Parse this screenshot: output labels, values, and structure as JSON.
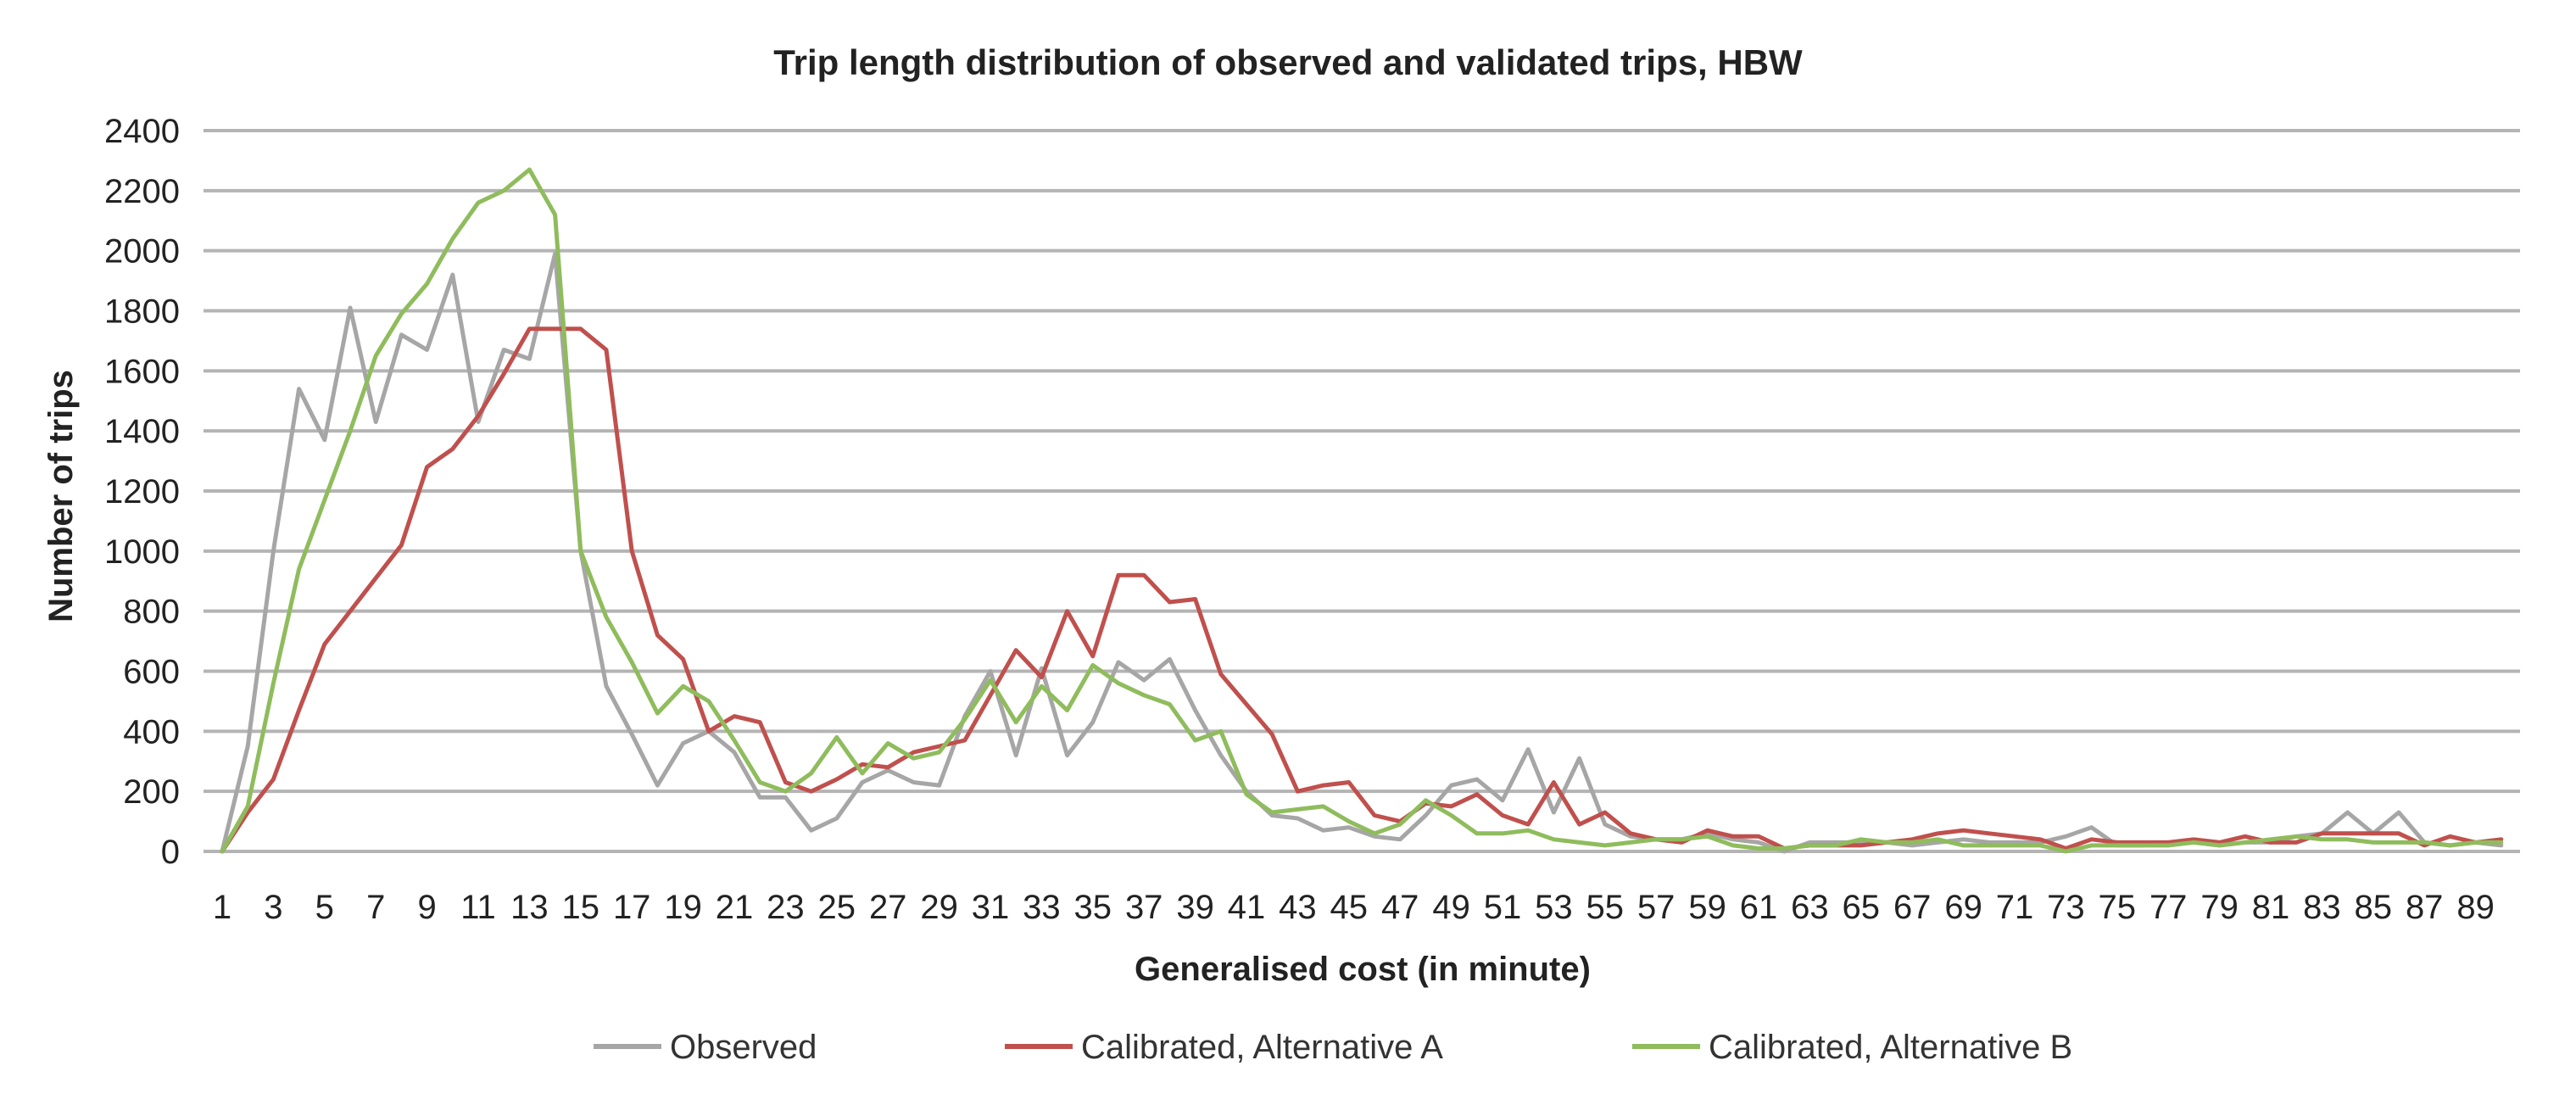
{
  "chart_data": {
    "type": "line",
    "title": "Trip length distribution of observed and validated trips, HBW",
    "xlabel": "Generalised cost (in minute)",
    "ylabel": "Number of trips",
    "ylim": [
      0,
      2400
    ],
    "yticks": [
      0,
      200,
      400,
      600,
      800,
      1000,
      1200,
      1400,
      1600,
      1800,
      2000,
      2200,
      2400
    ],
    "x": [
      1,
      2,
      3,
      4,
      5,
      6,
      7,
      8,
      9,
      10,
      11,
      12,
      13,
      14,
      15,
      16,
      17,
      18,
      19,
      20,
      21,
      22,
      23,
      24,
      25,
      26,
      27,
      28,
      29,
      30,
      31,
      32,
      33,
      34,
      35,
      36,
      37,
      38,
      39,
      40,
      41,
      42,
      43,
      44,
      45,
      46,
      47,
      48,
      49,
      50,
      51,
      52,
      53,
      54,
      55,
      56,
      57,
      58,
      59,
      60,
      61,
      62,
      63,
      64,
      65,
      66,
      67,
      68,
      69,
      70,
      71,
      72,
      73,
      74,
      75,
      76,
      77,
      78,
      79,
      80,
      81,
      82,
      83,
      84,
      85,
      86,
      87,
      88,
      89,
      90
    ],
    "xtick_labels": [
      "1",
      "3",
      "5",
      "7",
      "9",
      "11",
      "13",
      "15",
      "17",
      "19",
      "21",
      "23",
      "25",
      "27",
      "29",
      "31",
      "33",
      "35",
      "37",
      "39",
      "41",
      "43",
      "45",
      "47",
      "49",
      "51",
      "53",
      "55",
      "57",
      "59",
      "61",
      "63",
      "65",
      "67",
      "69",
      "71",
      "73",
      "75",
      "77",
      "79",
      "81",
      "83",
      "85",
      "87",
      "89"
    ],
    "grid": true,
    "legend_position": "bottom",
    "series": [
      {
        "name": "Observed",
        "color": "#a6a6a6",
        "values": [
          0,
          350,
          1000,
          1540,
          1370,
          1810,
          1430,
          1720,
          1670,
          1920,
          1430,
          1670,
          1640,
          1990,
          1000,
          550,
          390,
          220,
          360,
          400,
          330,
          180,
          180,
          70,
          110,
          230,
          270,
          230,
          220,
          450,
          600,
          320,
          610,
          320,
          430,
          630,
          570,
          640,
          470,
          320,
          200,
          120,
          110,
          70,
          80,
          50,
          40,
          120,
          220,
          240,
          170,
          340,
          130,
          310,
          90,
          50,
          40,
          40,
          60,
          40,
          30,
          0,
          30,
          30,
          30,
          30,
          20,
          30,
          40,
          30,
          30,
          30,
          50,
          80,
          20,
          20,
          30,
          30,
          20,
          30,
          30,
          50,
          60,
          130,
          60,
          130,
          30,
          20,
          30,
          20
        ]
      },
      {
        "name": "Calibrated, Alternative A",
        "color": "#c0504d",
        "values": [
          0,
          130,
          240,
          470,
          690,
          800,
          910,
          1020,
          1280,
          1340,
          1450,
          1590,
          1740,
          1740,
          1740,
          1670,
          1000,
          720,
          640,
          400,
          450,
          430,
          230,
          200,
          240,
          290,
          280,
          330,
          350,
          370,
          520,
          670,
          580,
          800,
          650,
          920,
          920,
          830,
          840,
          590,
          490,
          390,
          200,
          220,
          230,
          120,
          100,
          160,
          150,
          190,
          120,
          90,
          230,
          90,
          130,
          60,
          40,
          30,
          70,
          50,
          50,
          10,
          20,
          20,
          20,
          30,
          40,
          60,
          70,
          60,
          50,
          40,
          10,
          40,
          30,
          30,
          30,
          40,
          30,
          50,
          30,
          30,
          60,
          60,
          60,
          60,
          20,
          50,
          30,
          40
        ]
      },
      {
        "name": "Calibrated, Alternative B",
        "color": "#8fbc5c",
        "values": [
          0,
          150,
          560,
          940,
          1170,
          1400,
          1650,
          1790,
          1890,
          2040,
          2160,
          2200,
          2270,
          2120,
          1000,
          780,
          630,
          460,
          550,
          500,
          370,
          230,
          200,
          260,
          380,
          260,
          360,
          310,
          330,
          440,
          570,
          430,
          550,
          470,
          620,
          560,
          520,
          490,
          370,
          400,
          190,
          130,
          140,
          150,
          100,
          60,
          90,
          170,
          120,
          60,
          60,
          70,
          40,
          30,
          20,
          30,
          40,
          40,
          50,
          20,
          10,
          10,
          20,
          20,
          40,
          30,
          30,
          40,
          20,
          20,
          20,
          20,
          0,
          20,
          20,
          20,
          20,
          30,
          20,
          30,
          40,
          50,
          40,
          40,
          30,
          30,
          30,
          20,
          30,
          30
        ]
      }
    ]
  }
}
